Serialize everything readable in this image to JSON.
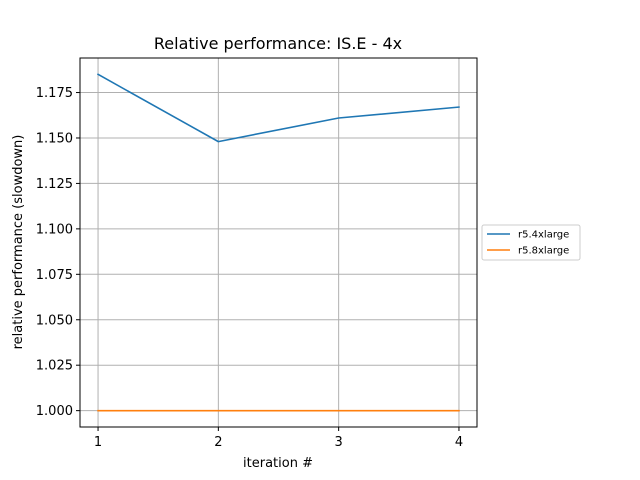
{
  "chart_data": {
    "type": "line",
    "title": "Relative performance: IS.E - 4x",
    "xlabel": "iteration #",
    "ylabel": "relative performance (slowdown)",
    "x": [
      1,
      2,
      3,
      4
    ],
    "xticks": [
      "1",
      "2",
      "3",
      "4"
    ],
    "yticks": [
      "1.000",
      "1.025",
      "1.050",
      "1.075",
      "1.100",
      "1.125",
      "1.150",
      "1.175"
    ],
    "xlim": [
      0.85,
      4.15
    ],
    "ylim": [
      0.991,
      1.194
    ],
    "grid": true,
    "legend_position": "outside-right",
    "series": [
      {
        "name": "r5.4xlarge",
        "color": "#1f77b4",
        "values": [
          1.185,
          1.148,
          1.161,
          1.167
        ]
      },
      {
        "name": "r5.8xlarge",
        "color": "#ff7f0e",
        "values": [
          1.0,
          1.0,
          1.0,
          1.0
        ]
      }
    ]
  }
}
